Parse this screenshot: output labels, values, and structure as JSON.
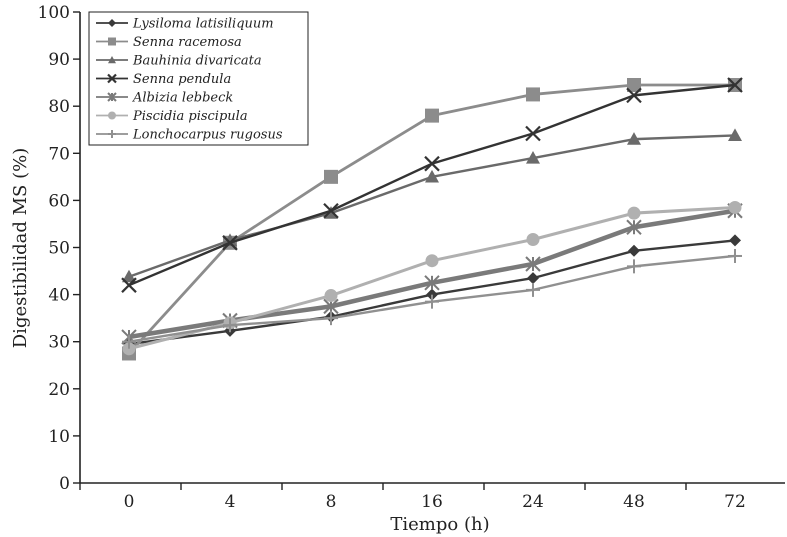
{
  "chart_data": {
    "type": "line",
    "title": "",
    "xlabel": "Tiempo (h)",
    "ylabel": "Digestibilidad MS (%)",
    "categories": [
      "0",
      "4",
      "8",
      "16",
      "24",
      "48",
      "72"
    ],
    "ylim": [
      0,
      100
    ],
    "yticks": [
      "0",
      "10",
      "20",
      "30",
      "40",
      "50",
      "60",
      "70",
      "80",
      "90",
      "100"
    ],
    "grid": false,
    "legend_position": "top-left",
    "series": [
      {
        "name": "Lysiloma latisiliquum",
        "marker": "diamond",
        "color": "#3a3a3a",
        "values": [
          29.5,
          32.3,
          35.3,
          40.0,
          43.5,
          49.3,
          51.5
        ]
      },
      {
        "name": "Senna racemosa",
        "marker": "square",
        "color": "#8c8c8c",
        "values": [
          27.5,
          51.0,
          65.0,
          78.0,
          82.5,
          84.5,
          84.5
        ]
      },
      {
        "name": "Bauhinia divaricata",
        "marker": "triangle",
        "color": "#6a6a6a",
        "values": [
          43.8,
          51.5,
          57.3,
          65.0,
          69.0,
          73.0,
          73.8
        ]
      },
      {
        "name": "Senna pendula",
        "marker": "x",
        "color": "#333333",
        "values": [
          42.0,
          51.0,
          57.8,
          67.8,
          74.2,
          82.3,
          84.5
        ]
      },
      {
        "name": "Albizia lebbeck",
        "marker": "asterisk",
        "color": "#7a7a7a",
        "values": [
          31.0,
          34.5,
          37.5,
          42.5,
          46.5,
          54.3,
          57.8
        ]
      },
      {
        "name": "Piscidia piscipula",
        "marker": "circle",
        "color": "#b0b0b0",
        "values": [
          28.5,
          34.0,
          39.8,
          47.2,
          51.7,
          57.3,
          58.5
        ]
      },
      {
        "name": "Lonchocarpus rugosus",
        "marker": "plus",
        "color": "#909090",
        "values": [
          30.0,
          33.5,
          35.0,
          38.5,
          41.0,
          46.0,
          48.2
        ]
      }
    ]
  }
}
